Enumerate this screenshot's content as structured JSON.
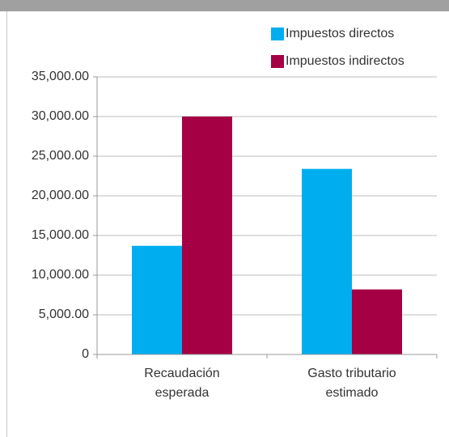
{
  "chart_data": {
    "type": "bar",
    "categories": [
      "Recaudación esperada",
      "Gasto tributario estimado"
    ],
    "series": [
      {
        "name": "Impuestos directos",
        "color": "#00aeef",
        "values": [
          13700,
          23400
        ]
      },
      {
        "name": "Impuestos indirectos",
        "color": "#a50044",
        "values": [
          30000,
          8200
        ]
      }
    ],
    "ylim": [
      0,
      35000
    ],
    "yticks": [
      0,
      {
        "value": 5000,
        "label": "5,000.00"
      },
      {
        "value": 10000,
        "label": "10,000.00"
      },
      {
        "value": 15000,
        "label": "15,000.00"
      },
      {
        "value": 20000,
        "label": "20,000.00"
      },
      {
        "value": 25000,
        "label": "25,000.00"
      },
      {
        "value": 30000,
        "label": "30,000.00"
      },
      {
        "value": 35000,
        "label": "35,000.00"
      }
    ],
    "grid": true,
    "legend": "top-right"
  }
}
